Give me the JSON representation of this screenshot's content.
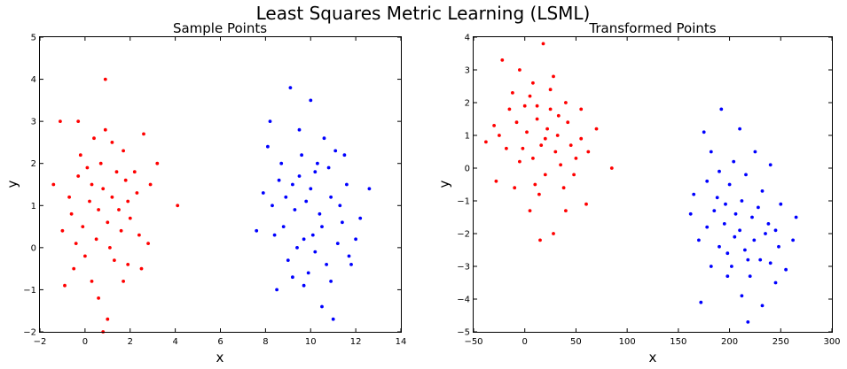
{
  "figure": {
    "title": "Least Squares Metric Learning (LSML)"
  },
  "chart_data": [
    {
      "type": "scatter",
      "title": "Sample Points",
      "xlabel": "x",
      "ylabel": "y",
      "xlim": [
        -2,
        14
      ],
      "ylim": [
        -2,
        5
      ],
      "xticks": [
        "−2",
        "0",
        "2",
        "4",
        "6",
        "8",
        "10",
        "12",
        "14"
      ],
      "xtick_values": [
        -2,
        0,
        2,
        4,
        6,
        8,
        10,
        12,
        14
      ],
      "yticks": [
        "−2",
        "−1",
        "0",
        "1",
        "2",
        "3",
        "4",
        "5"
      ],
      "ytick_values": [
        -2,
        -1,
        0,
        1,
        2,
        3,
        4,
        5
      ],
      "grid": false,
      "series": [
        {
          "color": "#ff0000",
          "points": [
            [
              -0.3,
              3.0
            ],
            [
              1.2,
              2.5
            ],
            [
              2.6,
              2.7
            ],
            [
              4.1,
              1.0
            ],
            [
              0.9,
              4.0
            ],
            [
              1.0,
              -1.7
            ],
            [
              0.6,
              -1.2
            ],
            [
              0.8,
              -2.0
            ],
            [
              -1.1,
              3.0
            ],
            [
              -0.9,
              -0.9
            ],
            [
              -0.6,
              0.8
            ],
            [
              -1.4,
              1.5
            ],
            [
              -0.2,
              2.2
            ],
            [
              0.4,
              2.6
            ],
            [
              1.7,
              2.3
            ],
            [
              2.2,
              1.8
            ],
            [
              3.2,
              2.0
            ],
            [
              2.8,
              0.1
            ],
            [
              2.5,
              -0.5
            ],
            [
              1.9,
              -0.4
            ],
            [
              1.3,
              -0.3
            ],
            [
              0.3,
              -0.8
            ],
            [
              -0.5,
              -0.5
            ],
            [
              -0.1,
              0.5
            ],
            [
              0.2,
              1.1
            ],
            [
              0.8,
              1.4
            ],
            [
              1.5,
              0.9
            ],
            [
              1.8,
              1.6
            ],
            [
              2.3,
              1.3
            ],
            [
              0.5,
              0.2
            ],
            [
              1.1,
              0.0
            ],
            [
              1.6,
              0.4
            ],
            [
              -0.7,
              1.2
            ],
            [
              -0.3,
              1.7
            ],
            [
              0.1,
              1.9
            ],
            [
              0.7,
              2.0
            ],
            [
              1.4,
              1.8
            ],
            [
              2.0,
              0.7
            ],
            [
              2.4,
              0.3
            ],
            [
              1.0,
              0.6
            ],
            [
              0.0,
              -0.2
            ],
            [
              -1.0,
              0.4
            ],
            [
              2.9,
              1.5
            ],
            [
              1.2,
              1.2
            ],
            [
              0.6,
              0.9
            ],
            [
              1.9,
              1.1
            ],
            [
              0.3,
              1.5
            ],
            [
              -0.4,
              0.1
            ],
            [
              1.7,
              -0.8
            ],
            [
              0.9,
              2.8
            ]
          ]
        },
        {
          "color": "#0000ff",
          "points": [
            [
              9.1,
              3.8
            ],
            [
              10.0,
              3.5
            ],
            [
              8.2,
              3.0
            ],
            [
              11.1,
              2.3
            ],
            [
              12.6,
              1.4
            ],
            [
              7.6,
              0.4
            ],
            [
              8.5,
              -1.0
            ],
            [
              9.7,
              -0.9
            ],
            [
              10.5,
              -1.4
            ],
            [
              11.0,
              -1.7
            ],
            [
              12.2,
              0.7
            ],
            [
              11.8,
              -0.4
            ],
            [
              10.6,
              2.6
            ],
            [
              9.5,
              2.8
            ],
            [
              8.7,
              2.0
            ],
            [
              9.2,
              1.5
            ],
            [
              10.2,
              1.8
            ],
            [
              10.9,
              1.2
            ],
            [
              11.4,
              0.6
            ],
            [
              10.1,
              0.3
            ],
            [
              9.4,
              0.0
            ],
            [
              8.8,
              0.5
            ],
            [
              8.3,
              1.0
            ],
            [
              9.8,
              1.1
            ],
            [
              10.4,
              0.8
            ],
            [
              11.2,
              0.1
            ],
            [
              10.7,
              -0.4
            ],
            [
              9.9,
              -0.6
            ],
            [
              9.0,
              -0.3
            ],
            [
              8.6,
              1.6
            ],
            [
              9.6,
              2.2
            ],
            [
              10.3,
              2.0
            ],
            [
              11.6,
              1.5
            ],
            [
              10.8,
              1.9
            ],
            [
              9.3,
              0.9
            ],
            [
              10.0,
              1.4
            ],
            [
              8.9,
              1.2
            ],
            [
              11.3,
              1.0
            ],
            [
              10.5,
              0.5
            ],
            [
              9.7,
              0.2
            ],
            [
              8.4,
              0.3
            ],
            [
              11.7,
              -0.2
            ],
            [
              9.2,
              -0.7
            ],
            [
              10.9,
              -0.8
            ],
            [
              8.1,
              2.4
            ],
            [
              11.5,
              2.2
            ],
            [
              12.0,
              0.2
            ],
            [
              7.9,
              1.3
            ],
            [
              10.2,
              -0.1
            ],
            [
              9.5,
              1.7
            ]
          ]
        }
      ]
    },
    {
      "type": "scatter",
      "title": "Transformed Points",
      "xlabel": "x",
      "ylabel": "y",
      "xlim": [
        -50,
        300
      ],
      "ylim": [
        -5,
        4
      ],
      "xticks": [
        "−50",
        "0",
        "50",
        "100",
        "150",
        "200",
        "250",
        "300"
      ],
      "xtick_values": [
        -50,
        0,
        50,
        100,
        150,
        200,
        250,
        300
      ],
      "yticks": [
        "−5",
        "−4",
        "−3",
        "−2",
        "−1",
        "0",
        "1",
        "2",
        "3",
        "4"
      ],
      "ytick_values": [
        -5,
        -4,
        -3,
        -2,
        -1,
        0,
        1,
        2,
        3,
        4
      ],
      "grid": false,
      "series": [
        {
          "color": "#ff0000",
          "points": [
            [
              18,
              3.8
            ],
            [
              -22,
              3.3
            ],
            [
              -5,
              3.0
            ],
            [
              8,
              2.6
            ],
            [
              25,
              2.4
            ],
            [
              40,
              2.0
            ],
            [
              55,
              1.8
            ],
            [
              70,
              1.2
            ],
            [
              85,
              0.0
            ],
            [
              60,
              -1.1
            ],
            [
              40,
              -1.3
            ],
            [
              28,
              -2.0
            ],
            [
              15,
              -2.2
            ],
            [
              5,
              -1.3
            ],
            [
              -10,
              -0.6
            ],
            [
              -28,
              -0.4
            ],
            [
              -38,
              0.8
            ],
            [
              -30,
              1.3
            ],
            [
              -15,
              1.8
            ],
            [
              0,
              1.9
            ],
            [
              12,
              1.5
            ],
            [
              22,
              1.2
            ],
            [
              32,
              1.0
            ],
            [
              45,
              0.7
            ],
            [
              50,
              0.3
            ],
            [
              35,
              0.1
            ],
            [
              20,
              -0.2
            ],
            [
              10,
              -0.5
            ],
            [
              -5,
              0.2
            ],
            [
              -18,
              0.6
            ],
            [
              2,
              1.1
            ],
            [
              16,
              0.7
            ],
            [
              30,
              0.5
            ],
            [
              42,
              1.4
            ],
            [
              25,
              1.8
            ],
            [
              8,
              0.3
            ],
            [
              -8,
              1.4
            ],
            [
              14,
              -0.8
            ],
            [
              38,
              -0.6
            ],
            [
              55,
              0.9
            ],
            [
              -25,
              1.0
            ],
            [
              5,
              2.2
            ],
            [
              28,
              2.8
            ],
            [
              48,
              -0.2
            ],
            [
              20,
              0.9
            ],
            [
              -12,
              2.3
            ],
            [
              33,
              1.6
            ],
            [
              62,
              0.5
            ],
            [
              -2,
              0.6
            ],
            [
              12,
              1.9
            ]
          ]
        },
        {
          "color": "#0000ff",
          "points": [
            [
              192,
              1.8
            ],
            [
              210,
              1.2
            ],
            [
              175,
              1.1
            ],
            [
              225,
              0.5
            ],
            [
              240,
              0.1
            ],
            [
              265,
              -1.5
            ],
            [
              262,
              -2.2
            ],
            [
              255,
              -3.1
            ],
            [
              245,
              -3.5
            ],
            [
              232,
              -4.2
            ],
            [
              218,
              -4.7
            ],
            [
              212,
              -3.9
            ],
            [
              198,
              -3.3
            ],
            [
              182,
              -3.0
            ],
            [
              172,
              -4.1
            ],
            [
              162,
              -1.4
            ],
            [
              165,
              -0.8
            ],
            [
              178,
              -0.4
            ],
            [
              188,
              -0.9
            ],
            [
              200,
              -0.5
            ],
            [
              212,
              -1.0
            ],
            [
              222,
              -1.5
            ],
            [
              235,
              -2.0
            ],
            [
              248,
              -2.4
            ],
            [
              230,
              -2.8
            ],
            [
              215,
              -2.5
            ],
            [
              205,
              -2.1
            ],
            [
              195,
              -1.7
            ],
            [
              185,
              -1.3
            ],
            [
              178,
              -1.8
            ],
            [
              190,
              -2.4
            ],
            [
              202,
              -3.0
            ],
            [
              220,
              -3.3
            ],
            [
              240,
              -2.9
            ],
            [
              228,
              -1.2
            ],
            [
              216,
              -0.2
            ],
            [
              204,
              0.2
            ],
            [
              196,
              -1.1
            ],
            [
              210,
              -1.9
            ],
            [
              224,
              -2.2
            ],
            [
              238,
              -1.7
            ],
            [
              250,
              -1.1
            ],
            [
              182,
              0.5
            ],
            [
              170,
              -2.2
            ],
            [
              190,
              -0.1
            ],
            [
              206,
              -1.4
            ],
            [
              218,
              -2.8
            ],
            [
              232,
              -0.7
            ],
            [
              198,
              -2.6
            ],
            [
              245,
              -1.9
            ]
          ]
        }
      ]
    }
  ]
}
